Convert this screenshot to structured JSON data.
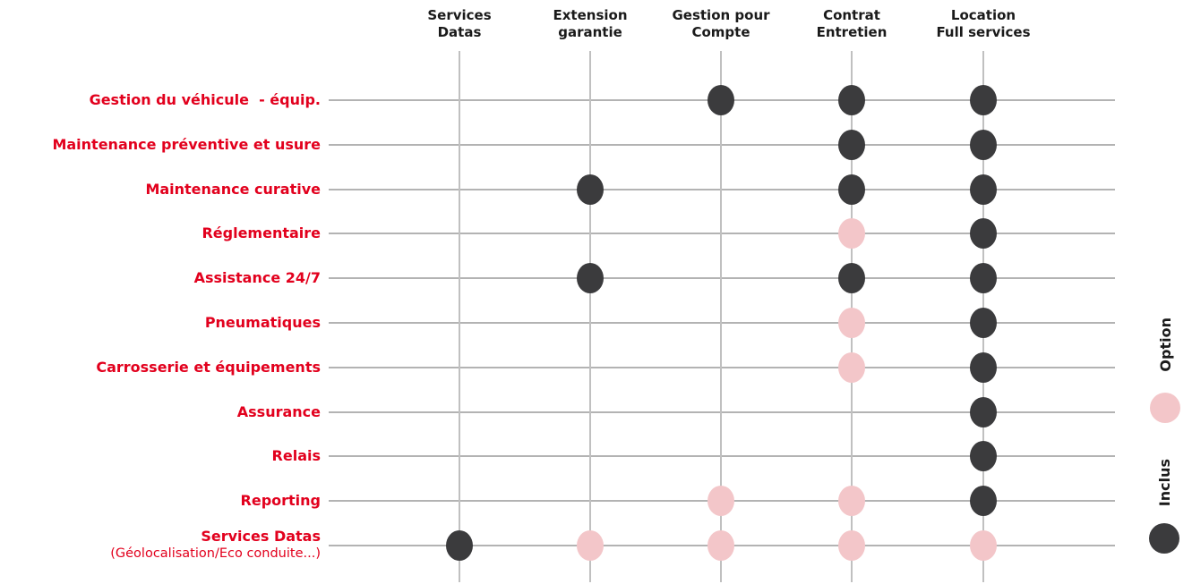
{
  "chart_data": {
    "type": "heatmap",
    "description": "Service inclusion matrix: services (rows) vs contract types (columns); dot present = service applies, dark = Inclus, pink = Option",
    "columns": [
      "Services\nDatas",
      "Extension\ngarantie",
      "Gestion pour\nCompte",
      "Contrat\nEntretien",
      "Location\nFull services"
    ],
    "rows": [
      {
        "label": "Gestion du véhicule  - équip.",
        "sublabel": "",
        "cells": [
          null,
          null,
          "inclus",
          "inclus",
          "inclus"
        ]
      },
      {
        "label": "Maintenance préventive et usure",
        "sublabel": "",
        "cells": [
          null,
          null,
          null,
          "inclus",
          "inclus"
        ]
      },
      {
        "label": "Maintenance curative",
        "sublabel": "",
        "cells": [
          null,
          "inclus",
          null,
          "inclus",
          "inclus"
        ]
      },
      {
        "label": "Réglementaire",
        "sublabel": "",
        "cells": [
          null,
          null,
          null,
          "option",
          "inclus"
        ]
      },
      {
        "label": "Assistance 24/7",
        "sublabel": "",
        "cells": [
          null,
          "inclus",
          null,
          "inclus",
          "inclus"
        ]
      },
      {
        "label": "Pneumatiques",
        "sublabel": "",
        "cells": [
          null,
          null,
          null,
          "option",
          "inclus"
        ]
      },
      {
        "label": "Carrosserie et équipements",
        "sublabel": "",
        "cells": [
          null,
          null,
          null,
          "option",
          "inclus"
        ]
      },
      {
        "label": "Assurance",
        "sublabel": "",
        "cells": [
          null,
          null,
          null,
          null,
          "inclus"
        ]
      },
      {
        "label": "Relais",
        "sublabel": "",
        "cells": [
          null,
          null,
          null,
          null,
          "inclus"
        ]
      },
      {
        "label": "Reporting",
        "sublabel": "",
        "cells": [
          null,
          null,
          "option",
          "option",
          "inclus"
        ]
      },
      {
        "label": "Services Datas",
        "sublabel": "(Géolocalisation/Eco conduite...)",
        "cells": [
          "inclus",
          "option",
          "option",
          "option",
          "option"
        ]
      }
    ],
    "legend": [
      {
        "label": "Option",
        "value": "option",
        "color": "#f3c6c9"
      },
      {
        "label": "Inclus",
        "value": "inclus",
        "color": "#3b3b3d"
      }
    ],
    "layout_hints": {
      "legend_position": "right, rotated 90deg",
      "grid": "on"
    },
    "colors": {
      "row_label_text": "#e2001d",
      "header_text": "#1a1a1a",
      "grid_line_horizontal": "#b3b3b3",
      "grid_line_vertical": "#c0c0c0",
      "background": "#ffffff"
    }
  }
}
